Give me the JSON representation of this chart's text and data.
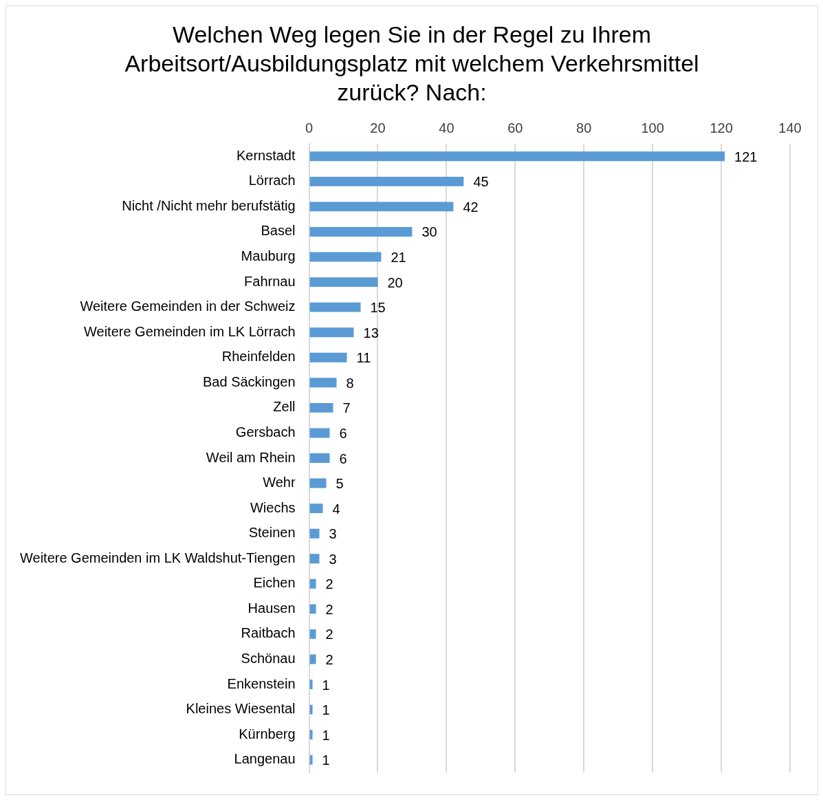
{
  "chart_data": {
    "type": "bar",
    "orientation": "horizontal",
    "title": "Welchen Weg legen Sie in der Regel zu Ihrem Arbeitsort/Ausbildungsplatz mit welchem Verkehrsmittel zurück? Nach:",
    "categories": [
      "Kernstadt",
      "Lörrach",
      "Nicht /Nicht mehr berufstätig",
      "Basel",
      "Mauburg",
      "Fahrnau",
      "Weitere Gemeinden in der Schweiz",
      "Weitere Gemeinden im LK Lörrach",
      "Rheinfelden",
      "Bad Säckingen",
      "Zell",
      "Gersbach",
      "Weil am Rhein",
      "Wehr",
      "Wiechs",
      "Steinen",
      "Weitere Gemeinden im LK Waldshut-Tiengen",
      "Eichen",
      "Hausen",
      "Raitbach",
      "Schönau",
      "Enkenstein",
      "Kleines Wiesental",
      "Kürnberg",
      "Langenau"
    ],
    "values": [
      121,
      45,
      42,
      30,
      21,
      20,
      15,
      13,
      11,
      8,
      7,
      6,
      6,
      5,
      4,
      3,
      3,
      2,
      2,
      2,
      2,
      1,
      1,
      1,
      1
    ],
    "color": "#5b9bd5",
    "xlim": [
      0,
      140
    ],
    "xticks": [
      0,
      20,
      40,
      60,
      80,
      100,
      120,
      140
    ],
    "grid": "x",
    "data_labels": true,
    "legend": false
  }
}
